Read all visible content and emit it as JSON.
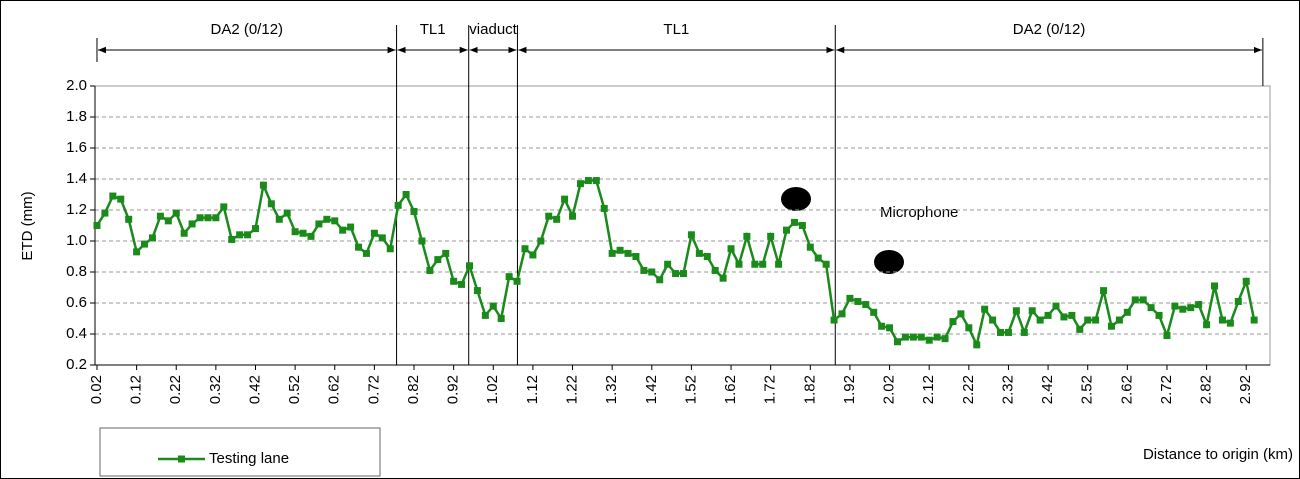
{
  "chart_data": {
    "type": "line",
    "y_label": "ETD (mm)",
    "x_label": "Distance to origin (km)",
    "annotation": "Microphone",
    "x": [
      0.02,
      0.04,
      0.06,
      0.08,
      0.1,
      0.12,
      0.14,
      0.16,
      0.18,
      0.2,
      0.22,
      0.24,
      0.26,
      0.28,
      0.3,
      0.32,
      0.34,
      0.36,
      0.38,
      0.4,
      0.42,
      0.44,
      0.46,
      0.48,
      0.5,
      0.52,
      0.54,
      0.56,
      0.58,
      0.6,
      0.62,
      0.64,
      0.66,
      0.68,
      0.7,
      0.72,
      0.74,
      0.76,
      0.78,
      0.8,
      0.82,
      0.84,
      0.86,
      0.88,
      0.9,
      0.92,
      0.94,
      0.96,
      0.98,
      1.0,
      1.02,
      1.04,
      1.06,
      1.08,
      1.1,
      1.12,
      1.14,
      1.16,
      1.18,
      1.2,
      1.22,
      1.24,
      1.26,
      1.28,
      1.3,
      1.32,
      1.34,
      1.36,
      1.38,
      1.4,
      1.42,
      1.44,
      1.46,
      1.48,
      1.5,
      1.52,
      1.54,
      1.56,
      1.58,
      1.6,
      1.62,
      1.64,
      1.66,
      1.68,
      1.7,
      1.72,
      1.74,
      1.76,
      1.78,
      1.8,
      1.82,
      1.84,
      1.86,
      1.88,
      1.9,
      1.92,
      1.94,
      1.96,
      1.98,
      2.0,
      2.02,
      2.04,
      2.06,
      2.08,
      2.1,
      2.12,
      2.14,
      2.16,
      2.18,
      2.2,
      2.22,
      2.24,
      2.26,
      2.28,
      2.3,
      2.32,
      2.34,
      2.36,
      2.38,
      2.4,
      2.42,
      2.44,
      2.46,
      2.48,
      2.5,
      2.52,
      2.54,
      2.56,
      2.58,
      2.6,
      2.62,
      2.64,
      2.66,
      2.68,
      2.7,
      2.72,
      2.74,
      2.76,
      2.78,
      2.8,
      2.82,
      2.84,
      2.86,
      2.88,
      2.9,
      2.92,
      2.94
    ],
    "series": [
      {
        "name": "Testing lane",
        "color": "#1a8a1a",
        "values": [
          1.1,
          1.18,
          1.29,
          1.27,
          1.14,
          0.93,
          0.98,
          1.02,
          1.16,
          1.13,
          1.18,
          1.05,
          1.11,
          1.15,
          1.15,
          1.15,
          1.22,
          1.01,
          1.04,
          1.04,
          1.08,
          1.36,
          1.24,
          1.14,
          1.18,
          1.06,
          1.05,
          1.03,
          1.11,
          1.14,
          1.13,
          1.07,
          1.09,
          0.96,
          0.92,
          1.05,
          1.02,
          0.95,
          1.23,
          1.3,
          1.19,
          1.0,
          0.81,
          0.88,
          0.92,
          0.74,
          0.72,
          0.84,
          0.68,
          0.52,
          0.58,
          0.5,
          0.77,
          0.74,
          0.95,
          0.91,
          1.0,
          1.16,
          1.14,
          1.27,
          1.16,
          1.37,
          1.39,
          1.39,
          1.21,
          0.92,
          0.94,
          0.92,
          0.9,
          0.81,
          0.8,
          0.75,
          0.85,
          0.79,
          0.79,
          1.04,
          0.92,
          0.9,
          0.81,
          0.76,
          0.95,
          0.85,
          1.03,
          0.85,
          0.85,
          1.03,
          0.85,
          1.07,
          1.12,
          1.1,
          0.96,
          0.89,
          0.85,
          0.49,
          0.53,
          0.63,
          0.61,
          0.59,
          0.54,
          0.45,
          0.44,
          0.35,
          0.38,
          0.38,
          0.38,
          0.36,
          0.38,
          0.37,
          0.48,
          0.53,
          0.44,
          0.33,
          0.56,
          0.49,
          0.41,
          0.41,
          0.55,
          0.41,
          0.55,
          0.49,
          0.52,
          0.58,
          0.51,
          0.52,
          0.43,
          0.49,
          0.49,
          0.68,
          0.45,
          0.49,
          0.54,
          0.62,
          0.62,
          0.57,
          0.52,
          0.39,
          0.58,
          0.56,
          0.57,
          0.59,
          0.46,
          0.71,
          0.49,
          0.47,
          0.61,
          0.74,
          0.49
        ]
      }
    ],
    "xlim": [
      0.015,
      2.98
    ],
    "ylim": [
      0.2,
      2.0
    ],
    "xticks": [
      0.02,
      0.12,
      0.22,
      0.32,
      0.42,
      0.52,
      0.62,
      0.72,
      0.82,
      0.92,
      1.02,
      1.12,
      1.22,
      1.32,
      1.42,
      1.52,
      1.62,
      1.72,
      1.82,
      1.92,
      2.02,
      2.12,
      2.22,
      2.32,
      2.42,
      2.52,
      2.62,
      2.72,
      2.82,
      2.92
    ],
    "yticks": [
      0.2,
      0.4,
      0.6,
      0.8,
      {
        "value": 1.0,
        "label": "1.0"
      },
      1.2,
      1.4,
      1.6,
      1.8,
      {
        "value": 2.0,
        "label": "2.0"
      }
    ],
    "grid": true,
    "sections": [
      {
        "label": "DA2 (0/12)",
        "start": 0.02,
        "end": 0.776
      },
      {
        "label": "TL1",
        "start": 0.776,
        "end": 0.958
      },
      {
        "label": "viaduct",
        "start": 0.958,
        "end": 1.081
      },
      {
        "label": "TL1",
        "start": 1.081,
        "end": 1.883
      },
      {
        "label": "DA2 (0/12)",
        "start": 1.883,
        "end": 2.962
      }
    ]
  }
}
